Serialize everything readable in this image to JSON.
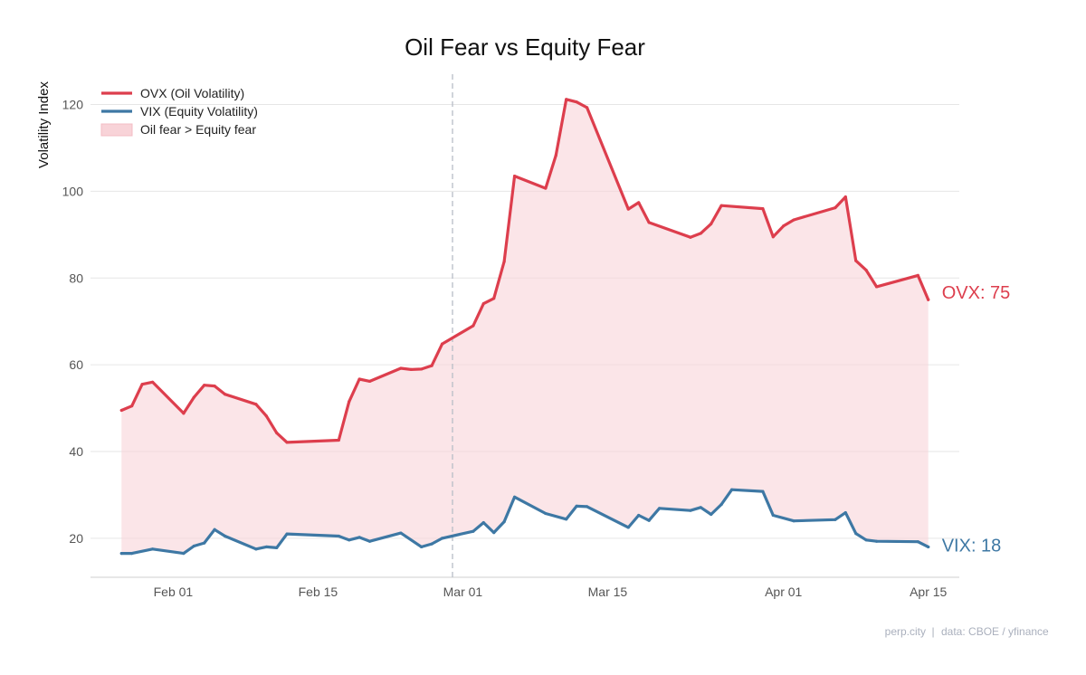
{
  "chart_data": {
    "type": "line",
    "title": "Oil Fear vs Equity Fear",
    "xlabel": "",
    "ylabel": "Volatility Index",
    "ylim": [
      11,
      127
    ],
    "yticks": [
      20,
      40,
      60,
      80,
      100,
      120
    ],
    "xlim": [
      "2026-01-24",
      "2026-04-18"
    ],
    "xticks": [
      {
        "date": "2026-02-01",
        "label": "Feb 01"
      },
      {
        "date": "2026-02-15",
        "label": "Feb 15"
      },
      {
        "date": "2026-03-01",
        "label": "Mar 01"
      },
      {
        "date": "2026-03-15",
        "label": "Mar 15"
      },
      {
        "date": "2026-04-01",
        "label": "Apr 01"
      },
      {
        "date": "2026-04-15",
        "label": "Apr 15"
      }
    ],
    "grid": "horizontal",
    "vline": {
      "date": "2026-02-28",
      "style": "dashed"
    },
    "series": [
      {
        "name": "OVX (Oil Volatility)",
        "color": "#dd3e4d",
        "end_label": "OVX: 75",
        "points": [
          [
            "2026-01-27",
            49.5
          ],
          [
            "2026-01-28",
            50.5
          ],
          [
            "2026-01-29",
            55.5
          ],
          [
            "2026-01-30",
            56.0
          ],
          [
            "2026-02-02",
            48.8
          ],
          [
            "2026-02-03",
            52.5
          ],
          [
            "2026-02-04",
            55.3
          ],
          [
            "2026-02-05",
            55.1
          ],
          [
            "2026-02-06",
            53.2
          ],
          [
            "2026-02-09",
            50.9
          ],
          [
            "2026-02-10",
            48.2
          ],
          [
            "2026-02-11",
            44.3
          ],
          [
            "2026-02-12",
            42.1
          ],
          [
            "2026-02-17",
            42.6
          ],
          [
            "2026-02-18",
            51.5
          ],
          [
            "2026-02-19",
            56.7
          ],
          [
            "2026-02-20",
            56.2
          ],
          [
            "2026-02-23",
            59.2
          ],
          [
            "2026-02-24",
            58.9
          ],
          [
            "2026-02-25",
            59.0
          ],
          [
            "2026-02-26",
            59.8
          ],
          [
            "2026-02-27",
            64.8
          ],
          [
            "2026-03-02",
            69.0
          ],
          [
            "2026-03-03",
            74.1
          ],
          [
            "2026-03-04",
            75.3
          ],
          [
            "2026-03-05",
            83.8
          ],
          [
            "2026-03-06",
            103.5
          ],
          [
            "2026-03-09",
            100.7
          ],
          [
            "2026-03-10",
            108.3
          ],
          [
            "2026-03-11",
            121.2
          ],
          [
            "2026-03-12",
            120.6
          ],
          [
            "2026-03-13",
            119.3
          ],
          [
            "2026-03-17",
            95.9
          ],
          [
            "2026-03-18",
            97.4
          ],
          [
            "2026-03-19",
            92.8
          ],
          [
            "2026-03-23",
            89.4
          ],
          [
            "2026-03-24",
            90.3
          ],
          [
            "2026-03-25",
            92.5
          ],
          [
            "2026-03-26",
            96.7
          ],
          [
            "2026-03-30",
            96.0
          ],
          [
            "2026-03-31",
            89.5
          ],
          [
            "2026-04-01",
            92.0
          ],
          [
            "2026-04-02",
            93.4
          ],
          [
            "2026-04-06",
            96.2
          ],
          [
            "2026-04-07",
            98.7
          ],
          [
            "2026-04-08",
            84.0
          ],
          [
            "2026-04-09",
            81.8
          ],
          [
            "2026-04-10",
            78.0
          ],
          [
            "2026-04-14",
            80.6
          ],
          [
            "2026-04-15",
            75.0
          ]
        ]
      },
      {
        "name": "VIX (Equity Volatility)",
        "color": "#3e78a4",
        "end_label": "VIX: 18",
        "points": [
          [
            "2026-01-27",
            16.5
          ],
          [
            "2026-01-28",
            16.5
          ],
          [
            "2026-01-30",
            17.5
          ],
          [
            "2026-02-02",
            16.5
          ],
          [
            "2026-02-03",
            18.2
          ],
          [
            "2026-02-04",
            18.9
          ],
          [
            "2026-02-05",
            22.0
          ],
          [
            "2026-02-06",
            20.5
          ],
          [
            "2026-02-09",
            17.5
          ],
          [
            "2026-02-10",
            18.0
          ],
          [
            "2026-02-11",
            17.8
          ],
          [
            "2026-02-12",
            21.0
          ],
          [
            "2026-02-17",
            20.5
          ],
          [
            "2026-02-18",
            19.6
          ],
          [
            "2026-02-19",
            20.2
          ],
          [
            "2026-02-20",
            19.3
          ],
          [
            "2026-02-23",
            21.2
          ],
          [
            "2026-02-25",
            18.0
          ],
          [
            "2026-02-26",
            18.7
          ],
          [
            "2026-02-27",
            20.0
          ],
          [
            "2026-03-02",
            21.6
          ],
          [
            "2026-03-03",
            23.6
          ],
          [
            "2026-03-04",
            21.3
          ],
          [
            "2026-03-05",
            23.8
          ],
          [
            "2026-03-06",
            29.5
          ],
          [
            "2026-03-09",
            25.7
          ],
          [
            "2026-03-11",
            24.4
          ],
          [
            "2026-03-12",
            27.4
          ],
          [
            "2026-03-13",
            27.3
          ],
          [
            "2026-03-17",
            22.5
          ],
          [
            "2026-03-18",
            25.3
          ],
          [
            "2026-03-19",
            24.1
          ],
          [
            "2026-03-20",
            26.9
          ],
          [
            "2026-03-23",
            26.4
          ],
          [
            "2026-03-24",
            27.1
          ],
          [
            "2026-03-25",
            25.5
          ],
          [
            "2026-03-26",
            27.8
          ],
          [
            "2026-03-27",
            31.2
          ],
          [
            "2026-03-30",
            30.8
          ],
          [
            "2026-03-31",
            25.3
          ],
          [
            "2026-04-02",
            24.0
          ],
          [
            "2026-04-06",
            24.3
          ],
          [
            "2026-04-07",
            25.9
          ],
          [
            "2026-04-08",
            21.1
          ],
          [
            "2026-04-09",
            19.6
          ],
          [
            "2026-04-10",
            19.3
          ],
          [
            "2026-04-14",
            19.2
          ],
          [
            "2026-04-15",
            18.0
          ]
        ]
      }
    ],
    "fill": {
      "label": "Oil fear > Equity fear",
      "color": "#f8d3d8",
      "between": [
        "OVX (Oil Volatility)",
        "VIX (Equity Volatility)"
      ]
    },
    "legend": {
      "position": "top-left"
    }
  },
  "credit": {
    "brand": "perp.city",
    "separator": "|",
    "source": "data: CBOE / yfinance"
  }
}
